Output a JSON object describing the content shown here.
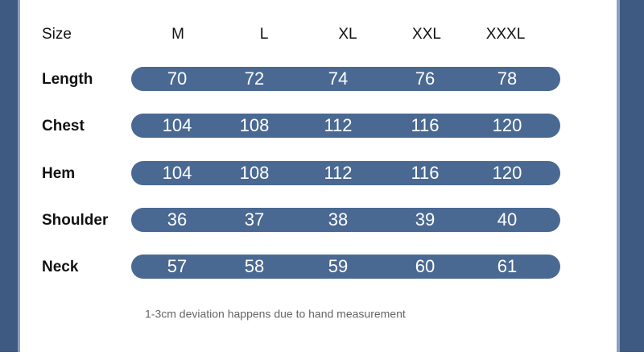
{
  "table": {
    "header": [
      "Size",
      "M",
      "L",
      "XL",
      "XXL",
      "XXXL"
    ],
    "rows": [
      [
        "Length",
        "70",
        "72",
        "74",
        "76",
        "78"
      ],
      [
        "Chest",
        "104",
        "108",
        "112",
        "116",
        "120"
      ],
      [
        "Hem",
        "104",
        "108",
        "112",
        "116",
        "120"
      ],
      [
        "Shoulder",
        "36",
        "37",
        "38",
        "39",
        "40"
      ],
      [
        "Neck",
        "57",
        "58",
        "59",
        "60",
        "61"
      ]
    ]
  },
  "note": "1-3cm deviation happens due to hand measurement"
}
